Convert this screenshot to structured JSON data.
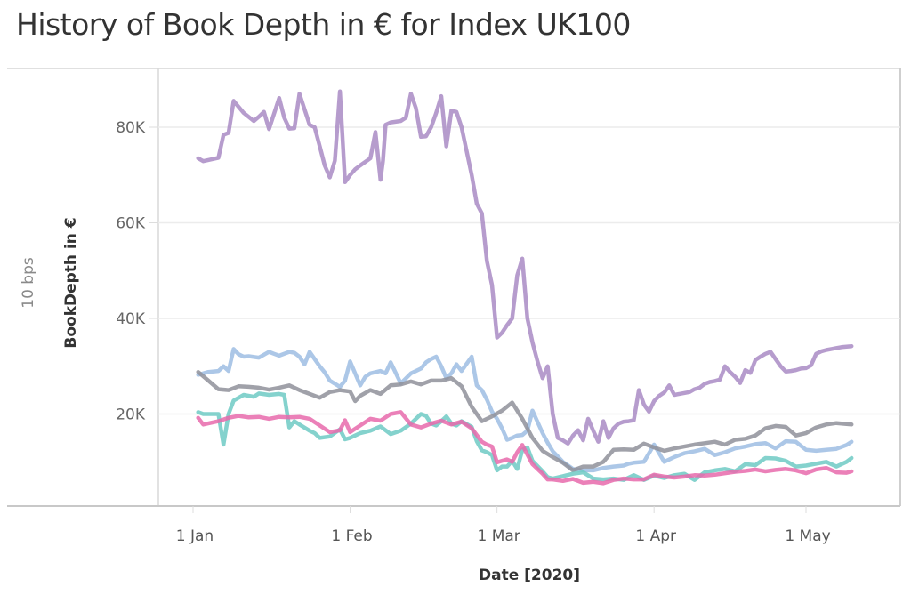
{
  "header": {
    "title": "History of Book Depth in € for Index UK100"
  },
  "side_label": "10 bps",
  "chart_data": {
    "type": "line",
    "title": "History of Book Depth in € for Index UK100",
    "xlabel": "Date [2020]",
    "ylabel": "BookDepth in €",
    "x_unit": "day of year 2020 (1 = 1 Jan)",
    "xlim": [
      -6,
      137
    ],
    "ylim": [
      0,
      90000
    ],
    "grid": true,
    "legend": "none",
    "yticks": [
      {
        "value": 20000,
        "label": "20K"
      },
      {
        "value": 40000,
        "label": "40K"
      },
      {
        "value": 60000,
        "label": "60K"
      },
      {
        "value": 80000,
        "label": "80K"
      }
    ],
    "xticks": [
      {
        "value": 1,
        "label": "1 Jan"
      },
      {
        "value": 32,
        "label": "1 Feb"
      },
      {
        "value": 61,
        "label": "1 Mar"
      },
      {
        "value": 92,
        "label": "1 Apr"
      },
      {
        "value": 122,
        "label": "1 May"
      }
    ],
    "series": [
      {
        "name": "purple",
        "color": "#a98bc4",
        "x": [
          2,
          3,
          6,
          7,
          8,
          9,
          11,
          13,
          14,
          15,
          16,
          18,
          19,
          20,
          21,
          22,
          24,
          25,
          26,
          27,
          28,
          29,
          30,
          31,
          32,
          33,
          34,
          36,
          37,
          38,
          38.5,
          39,
          40,
          42,
          43,
          44,
          45,
          46,
          47,
          48,
          49,
          50,
          51,
          52,
          53,
          54,
          56,
          57,
          58,
          59,
          60,
          61,
          62,
          63,
          64,
          65,
          66,
          67,
          68,
          69,
          70,
          71,
          72,
          73,
          74,
          75,
          76,
          77,
          78,
          79,
          80,
          81,
          82,
          83,
          84,
          85,
          86,
          87,
          88,
          89,
          90,
          91,
          92,
          93,
          94,
          95,
          96,
          97,
          99,
          100,
          101,
          102,
          103,
          104,
          105,
          106,
          107,
          108,
          109,
          110,
          111,
          112,
          113,
          114,
          115,
          116,
          117,
          118,
          119,
          120,
          121,
          122,
          123,
          124,
          125,
          126,
          127,
          128,
          129,
          130,
          131
        ],
        "y": [
          73500,
          72900,
          73600,
          78400,
          78800,
          85500,
          83000,
          81300,
          82200,
          83200,
          79600,
          86100,
          82000,
          79700,
          79800,
          87000,
          80500,
          80000,
          76000,
          72000,
          69500,
          73000,
          87500,
          68500,
          70000,
          71200,
          72000,
          73500,
          79000,
          69000,
          73000,
          80500,
          81000,
          81300,
          82000,
          87000,
          84000,
          78000,
          78100,
          80000,
          83000,
          86500,
          76000,
          83500,
          83200,
          80000,
          70000,
          64000,
          62000,
          52000,
          47000,
          36000,
          37000,
          38600,
          40000,
          49000,
          52500,
          40000,
          35000,
          31000,
          27500,
          30000,
          20000,
          15000,
          14500,
          13800,
          15500,
          16600,
          14500,
          19000,
          16500,
          14200,
          18500,
          15000,
          17000,
          18000,
          18400,
          18500,
          18700,
          25000,
          22000,
          20500,
          22700,
          23800,
          24500,
          26000,
          24000,
          24200,
          24600,
          25200,
          25500,
          26300,
          26700,
          26900,
          27200,
          30000,
          28800,
          27800,
          26500,
          29200,
          28600,
          31300,
          32000,
          32600,
          33000,
          31500,
          30000,
          28900,
          29000,
          29200,
          29500,
          29600,
          30200,
          32600,
          33100,
          33400,
          33600,
          33800,
          34000,
          34100,
          34200
        ]
      },
      {
        "name": "light-blue",
        "color": "#9ebde3",
        "x": [
          2,
          4,
          6,
          7,
          8,
          9,
          10,
          11,
          12,
          14,
          16,
          17,
          18,
          20,
          21,
          22,
          23,
          24,
          26,
          27,
          28,
          30,
          31,
          32,
          34,
          35,
          36,
          38,
          39,
          40,
          42,
          44,
          46,
          47,
          48,
          49,
          50,
          51,
          52,
          53,
          54,
          56,
          57,
          58,
          59,
          60,
          61,
          62,
          63,
          64,
          65,
          66,
          67,
          68,
          70,
          71,
          72,
          74,
          76,
          78,
          80,
          82,
          84,
          86,
          87,
          88,
          90,
          92,
          94,
          96,
          98,
          100,
          102,
          104,
          106,
          108,
          110,
          112,
          114,
          116,
          118,
          120,
          122,
          124,
          126,
          128,
          130,
          131
        ],
        "y": [
          28200,
          28800,
          29000,
          30000,
          29000,
          33600,
          32500,
          32000,
          32100,
          31800,
          33000,
          32600,
          32200,
          33000,
          32800,
          32000,
          30400,
          33000,
          30000,
          28700,
          27000,
          25700,
          27000,
          31000,
          26000,
          27800,
          28500,
          29000,
          28500,
          30800,
          26400,
          28500,
          29500,
          30800,
          31500,
          32000,
          30000,
          27500,
          28500,
          30400,
          29000,
          32000,
          26000,
          25000,
          23000,
          20500,
          19000,
          17000,
          14600,
          15000,
          15500,
          15600,
          16500,
          20700,
          16000,
          14000,
          12200,
          10000,
          8500,
          8200,
          8200,
          8700,
          9000,
          9200,
          9600,
          9800,
          10000,
          13600,
          10000,
          11000,
          11800,
          12200,
          12700,
          11400,
          12000,
          12800,
          13200,
          13700,
          13900,
          12800,
          14300,
          14200,
          12500,
          12300,
          12500,
          12700,
          13500,
          14200
        ]
      },
      {
        "name": "gray",
        "color": "#8f919a",
        "x": [
          2,
          4,
          6,
          8,
          10,
          12,
          14,
          16,
          18,
          20,
          22,
          24,
          26,
          28,
          30,
          32,
          33,
          34,
          36,
          38,
          40,
          42,
          44,
          46,
          48,
          50,
          52,
          54,
          56,
          58,
          60,
          62,
          64,
          66,
          68,
          70,
          72,
          74,
          76,
          78,
          80,
          82,
          84,
          86,
          88,
          90,
          92,
          94,
          96,
          98,
          100,
          102,
          104,
          106,
          108,
          110,
          112,
          114,
          116,
          118,
          120,
          122,
          124,
          126,
          128,
          130,
          131
        ],
        "y": [
          28800,
          27000,
          25200,
          25000,
          25800,
          25700,
          25500,
          25100,
          25500,
          26000,
          25000,
          24200,
          23400,
          24600,
          25000,
          24700,
          22700,
          23800,
          25000,
          24200,
          26000,
          26200,
          26800,
          26200,
          27000,
          27000,
          27500,
          25800,
          21500,
          18500,
          19500,
          20700,
          22400,
          19000,
          15000,
          12300,
          11000,
          9800,
          8200,
          9000,
          9000,
          10000,
          12500,
          12600,
          12500,
          13800,
          13000,
          12300,
          12800,
          13200,
          13600,
          13900,
          14200,
          13600,
          14600,
          14800,
          15500,
          17000,
          17500,
          17300,
          15500,
          16000,
          17200,
          17800,
          18100,
          17900,
          17800
        ]
      },
      {
        "name": "teal",
        "color": "#6fcac4",
        "x": [
          2,
          3,
          5,
          6,
          7,
          8,
          9,
          11,
          13,
          14,
          16,
          18,
          19,
          20,
          21,
          22,
          24,
          25,
          26,
          28,
          30,
          31,
          32,
          33,
          34,
          36,
          38,
          40,
          42,
          44,
          46,
          47,
          48,
          49,
          50,
          51,
          52,
          53,
          54,
          56,
          57,
          58,
          59,
          60,
          61,
          62,
          63,
          64,
          65,
          66,
          67,
          68,
          70,
          71,
          72,
          74,
          76,
          78,
          80,
          82,
          84,
          86,
          88,
          90,
          92,
          94,
          96,
          98,
          100,
          102,
          104,
          106,
          108,
          110,
          112,
          114,
          116,
          118,
          120,
          122,
          124,
          126,
          128,
          130,
          131
        ],
        "y": [
          20400,
          20000,
          20000,
          20000,
          13600,
          20000,
          22800,
          24000,
          23600,
          24300,
          24000,
          24200,
          24000,
          17200,
          18500,
          17800,
          16500,
          16000,
          15000,
          15300,
          16800,
          14700,
          15000,
          15500,
          16000,
          16500,
          17400,
          15800,
          16500,
          18000,
          20000,
          19600,
          18000,
          17600,
          18500,
          19500,
          18000,
          17600,
          18500,
          17300,
          14300,
          12400,
          12000,
          11400,
          8200,
          9000,
          9000,
          10200,
          8500,
          12500,
          13000,
          10200,
          8000,
          6800,
          6500,
          7000,
          7500,
          7800,
          6500,
          6300,
          6500,
          6200,
          7200,
          6200,
          7100,
          6600,
          7200,
          7500,
          6200,
          7800,
          8200,
          8500,
          8000,
          9500,
          9300,
          10800,
          10700,
          10200,
          9000,
          9200,
          9600,
          10000,
          9000,
          10000,
          10800
        ]
      },
      {
        "name": "pink",
        "color": "#e86aab",
        "x": [
          2,
          3,
          6,
          8,
          10,
          12,
          14,
          16,
          18,
          20,
          22,
          24,
          26,
          28,
          30,
          31,
          32,
          34,
          36,
          38,
          40,
          42,
          44,
          46,
          48,
          50,
          52,
          54,
          56,
          58,
          59,
          60,
          61,
          62,
          63,
          64,
          65,
          66,
          67,
          68,
          70,
          71,
          72,
          74,
          76,
          78,
          80,
          82,
          84,
          86,
          88,
          90,
          92,
          94,
          96,
          98,
          100,
          102,
          104,
          106,
          108,
          110,
          112,
          114,
          116,
          118,
          120,
          122,
          124,
          126,
          128,
          130,
          131
        ],
        "y": [
          19200,
          17800,
          18500,
          19200,
          19600,
          19300,
          19400,
          19000,
          19400,
          19300,
          19400,
          19000,
          17600,
          16200,
          16600,
          18700,
          16200,
          17600,
          19000,
          18600,
          20000,
          20400,
          17800,
          17200,
          18000,
          18600,
          17800,
          18400,
          17000,
          14200,
          13600,
          13200,
          9900,
          10200,
          10500,
          10000,
          12000,
          13500,
          11500,
          9500,
          7500,
          6300,
          6300,
          6000,
          6400,
          5600,
          5800,
          5500,
          6200,
          6500,
          6300,
          6300,
          7300,
          6900,
          6700,
          6900,
          7200,
          7100,
          7300,
          7600,
          7900,
          8100,
          8400,
          8000,
          8300,
          8500,
          8200,
          7600,
          8400,
          8700,
          7800,
          7700,
          8000
        ]
      }
    ]
  }
}
